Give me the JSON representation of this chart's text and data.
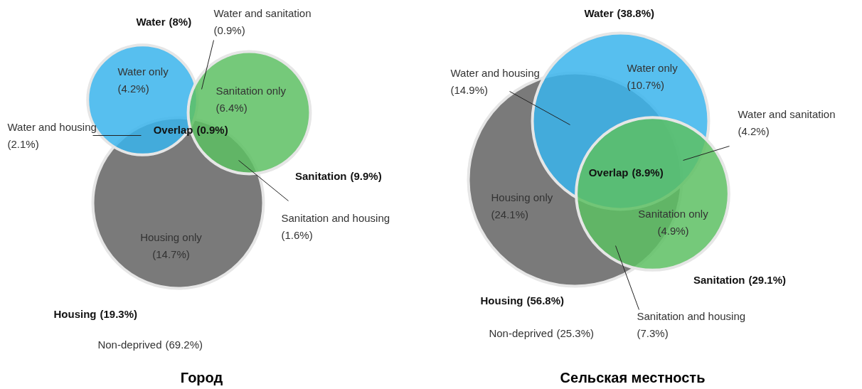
{
  "chart_data": [
    {
      "type": "other",
      "title": "Город",
      "categories": [
        "Water",
        "Sanitation",
        "Housing",
        "Water only",
        "Sanitation only",
        "Housing only",
        "Water and sanitation",
        "Water and housing",
        "Sanitation and housing",
        "Overlap",
        "Non-deprived"
      ],
      "values": [
        8,
        9.9,
        19.3,
        4.2,
        6.4,
        14.7,
        0.9,
        2.1,
        1.6,
        0.9,
        69.2
      ],
      "value_labels": [
        "(8%)",
        "(9.9%)",
        "(19.3%)",
        "(4.2%)",
        "(6.4%)",
        "(14.7%)",
        "(0.9%)",
        "(2.1%)",
        "(1.6%)",
        "(0.9%)",
        "(69.2%)"
      ],
      "colors": [
        "#3ab4ec",
        "#5dbf63",
        "#7a7a7a",
        null,
        null,
        null,
        null,
        null,
        null,
        null,
        null
      ]
    },
    {
      "type": "other",
      "title": "Сельская местность",
      "categories": [
        "Water",
        "Sanitation",
        "Housing",
        "Water only",
        "Sanitation only",
        "Housing only",
        "Water and sanitation",
        "Water and housing",
        "Sanitation and housing",
        "Overlap",
        "Non-deprived"
      ],
      "values": [
        38.8,
        29.1,
        56.8,
        10.7,
        4.9,
        24.1,
        4.2,
        14.9,
        7.3,
        8.9,
        25.3
      ],
      "value_labels": [
        "(38.8%)",
        "(29.1%)",
        "(56.8%)",
        "(10.7%)",
        "(4.9%)",
        "(24.1%)",
        "(4.2%)",
        "(14.9%)",
        "(7.3%)",
        "(8.9%)",
        "(25.3%)"
      ],
      "colors": [
        "#3ab4ec",
        "#5dbf63",
        "#7a7a7a",
        null,
        null,
        null,
        null,
        null,
        null,
        null,
        null
      ]
    }
  ]
}
